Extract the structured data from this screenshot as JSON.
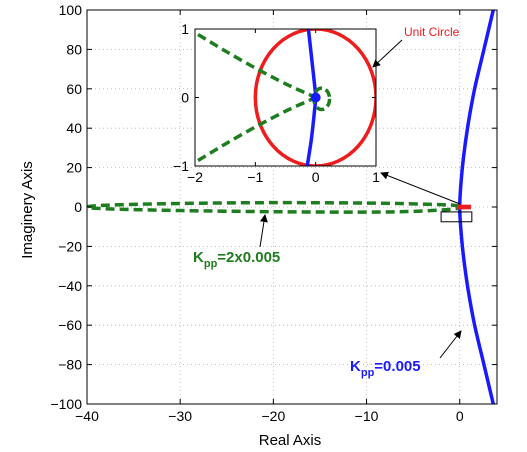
{
  "chart_data": [
    {
      "type": "line",
      "xlabel": "Real Axis",
      "ylabel": "Imaginery Axis",
      "xlim": [
        -40,
        4
      ],
      "ylim": [
        -100,
        100
      ],
      "xticks": [
        -40,
        -30,
        -20,
        -10,
        0
      ],
      "yticks": [
        -100,
        -80,
        -60,
        -40,
        -20,
        0,
        20,
        40,
        60,
        80,
        100
      ],
      "grid": true,
      "series": [
        {
          "label_main": "K",
          "label_sub": "pp",
          "label_rest": "=0.005",
          "style": "solid",
          "color": "#1a1aff",
          "x": [
            3.6,
            2.6,
            1.6,
            0.9,
            0.4,
            0.1,
            0.0,
            0.1,
            0.4,
            0.9,
            1.6,
            2.6,
            3.6
          ],
          "y": [
            100,
            80,
            60,
            42,
            25,
            10,
            0,
            -10,
            -25,
            -42,
            -60,
            -80,
            -100
          ]
        },
        {
          "label_main": "K",
          "label_sub": "pp",
          "label_rest": "=2x0.005",
          "style": "dashed",
          "color": "#1e7d1e",
          "x": [
            0.0,
            -1.0,
            -5.0,
            -10.0,
            -20.0,
            -30.0,
            -38.0,
            -40.0,
            -38.0,
            -30.0,
            -20.0,
            -10.0,
            -5.0,
            -1.0,
            0.0
          ],
          "y": [
            0.3,
            1.0,
            1.6,
            2.0,
            2.2,
            1.8,
            0.9,
            0.0,
            -0.9,
            -1.8,
            -2.4,
            -2.6,
            -2.2,
            -1.2,
            -0.3
          ]
        }
      ],
      "unit_circle_marker": {
        "color": "#ee1c1c",
        "x": [
          -0.3,
          1.2
        ],
        "y": [
          -1.2,
          1.2
        ]
      },
      "annotations": [
        {
          "text": "Unit Circle",
          "color": "#ee1c1c"
        }
      ]
    },
    {
      "type": "line",
      "inset": true,
      "xlim": [
        -2,
        1
      ],
      "ylim": [
        -1,
        1
      ],
      "xticks": [
        -2,
        -1,
        0,
        1
      ],
      "yticks": [
        -1,
        0,
        1
      ],
      "grid": false,
      "series": [
        {
          "name": "Unit Circle",
          "style": "solid",
          "color": "#ee1c1c",
          "circle": {
            "cx": 0,
            "cy": 0,
            "r": 1
          }
        },
        {
          "style": "solid",
          "color": "#1a1aff",
          "x": [
            -0.12,
            -0.07,
            -0.02,
            0.0,
            -0.02,
            -0.07,
            -0.14
          ],
          "y": [
            1.0,
            0.6,
            0.2,
            0.0,
            -0.2,
            -0.6,
            -1.0
          ]
        },
        {
          "style": "dashed",
          "color": "#1e7d1e",
          "x": [
            -1.95,
            -1.5,
            -1.0,
            -0.5,
            -0.15,
            0.0
          ],
          "y": [
            0.92,
            0.68,
            0.43,
            0.2,
            0.06,
            0.0
          ]
        },
        {
          "style": "dashed",
          "color": "#1e7d1e",
          "x": [
            -1.95,
            -1.5,
            -1.0,
            -0.5,
            -0.15,
            0.0
          ],
          "y": [
            -0.92,
            -0.68,
            -0.43,
            -0.2,
            -0.06,
            0.0
          ]
        },
        {
          "style": "dashed",
          "color": "#1e7d1e",
          "small_loop": {
            "cx": 0.1,
            "cy": -0.02,
            "r": 0.13
          }
        },
        {
          "style": "marker",
          "color": "#1a1aff",
          "point": {
            "x": 0.0,
            "y": 0.0
          }
        }
      ]
    }
  ]
}
